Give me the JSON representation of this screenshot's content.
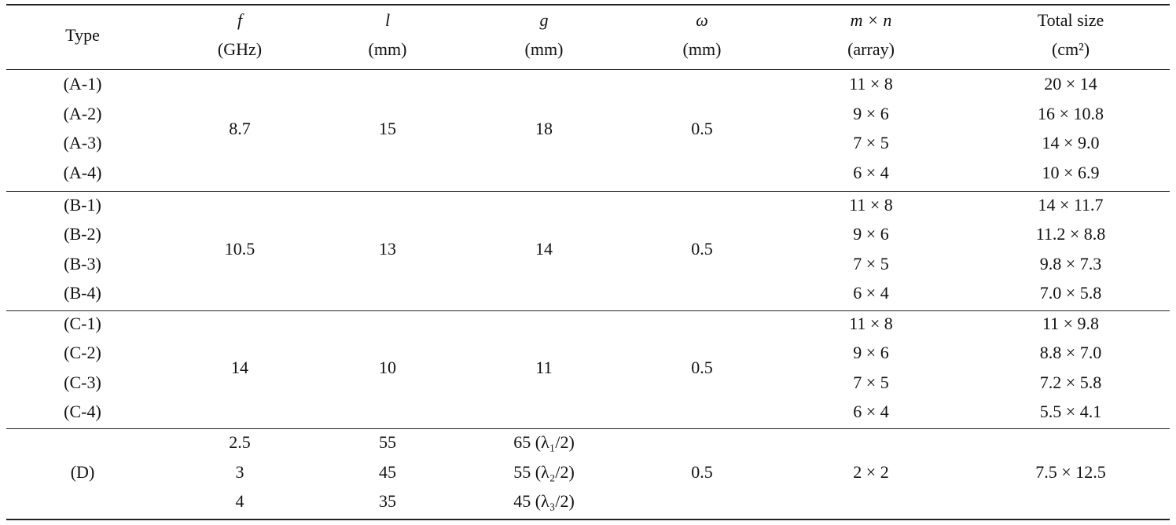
{
  "table": {
    "header": [
      [
        "Type"
      ],
      [
        "f",
        "(GHz)"
      ],
      [
        "l",
        "(mm)"
      ],
      [
        "g",
        "(mm)"
      ],
      [
        "ω",
        "(mm)"
      ],
      [
        "m × n",
        "(array)"
      ],
      [
        "Total size",
        "(cm²)"
      ]
    ],
    "groups": [
      {
        "cells": [
          [
            "(A-1)",
            "(A-2)",
            "(A-3)",
            "(A-4)"
          ],
          [
            "8.7"
          ],
          [
            "15"
          ],
          [
            "18"
          ],
          [
            "0.5"
          ],
          [
            "11 × 8",
            "9 × 6",
            "7 × 5",
            "6 × 4"
          ],
          [
            "20 × 14",
            "16 × 10.8",
            "14 × 9.0",
            "10 × 6.9"
          ]
        ]
      },
      {
        "cells": [
          [
            "(B-1)",
            "(B-2)",
            "(B-3)",
            "(B-4)"
          ],
          [
            "10.5"
          ],
          [
            "13"
          ],
          [
            "14"
          ],
          [
            "0.5"
          ],
          [
            "11 × 8",
            "9 × 6",
            "7 × 5",
            "6 × 4"
          ],
          [
            "14 × 11.7",
            "11.2 × 8.8",
            "9.8 × 7.3",
            "7.0 × 5.8"
          ]
        ]
      },
      {
        "cells": [
          [
            "(C-1)",
            "(C-2)",
            "(C-3)",
            "(C-4)"
          ],
          [
            "14"
          ],
          [
            "10"
          ],
          [
            "11"
          ],
          [
            "0.5"
          ],
          [
            "11 × 8",
            "9 × 6",
            "7 × 5",
            "6 × 4"
          ],
          [
            "11 × 9.8",
            "8.8 × 7.0",
            "7.2 × 5.8",
            "5.5 × 4.1"
          ]
        ]
      },
      {
        "cells": [
          [
            "(D)"
          ],
          [
            "2.5",
            "3",
            "4"
          ],
          [
            "55",
            "45",
            "35"
          ],
          [
            "65 (λ₁/2)",
            "55 (λ₂/2)",
            "45 (λ₃/2)"
          ],
          [
            "0.5"
          ],
          [
            "2 × 2"
          ],
          [
            "7.5 × 12.5"
          ]
        ]
      }
    ]
  }
}
